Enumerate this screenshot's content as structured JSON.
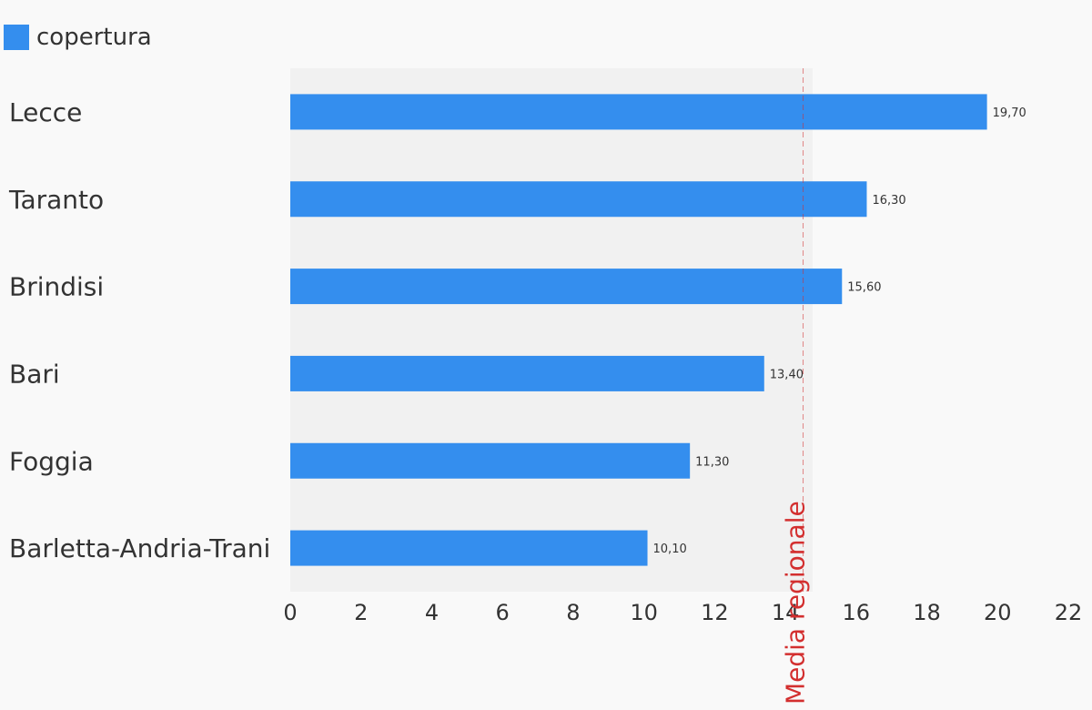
{
  "chart_data": {
    "type": "bar",
    "orientation": "horizontal",
    "categories": [
      "Lecce",
      "Taranto",
      "Brindisi",
      "Bari",
      "Foggia",
      "Barletta-Andria-Trani"
    ],
    "series": [
      {
        "name": "copertura",
        "values": [
          19.7,
          16.3,
          15.6,
          13.4,
          11.3,
          10.1
        ],
        "value_labels": [
          "19,70",
          "16,30",
          "15,60",
          "13,40",
          "11,30",
          "10,10"
        ],
        "color": "#348eee"
      }
    ],
    "xlim": [
      0,
      22
    ],
    "x_ticks": [
      0,
      2,
      4,
      6,
      8,
      10,
      12,
      14,
      16,
      18,
      20,
      22
    ],
    "reference_line": {
      "label": "Media regionale",
      "value": 14.5,
      "color": "#d32f2f",
      "style": "dashed"
    },
    "legend_position": "top-left",
    "plot_background": "#f1f1f1",
    "grid": false
  }
}
